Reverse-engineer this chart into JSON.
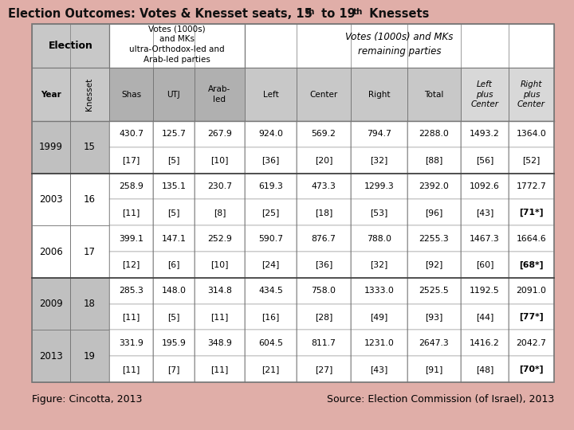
{
  "title_plain": "Election Outcomes: Votes & Knesset seats, 15th to 19th Knessets",
  "bg_color": "#e0aea8",
  "footer_left": "Figure: Cincotta, 2013",
  "footer_right": "Source: Election Commission (of Israel), 2013",
  "rows": [
    {
      "year": "1999",
      "knesset": "15",
      "shas_v": "430.7",
      "shas_mk": "[17]",
      "utj_v": "125.7",
      "utj_mk": "[5]",
      "arab_v": "267.9",
      "arab_mk": "[10]",
      "left_v": "924.0",
      "left_mk": "[36]",
      "center_v": "569.2",
      "center_mk": "[20]",
      "right_v": "794.7",
      "right_mk": "[32]",
      "total_v": "2288.0",
      "total_mk": "[88]",
      "lpc_v": "1493.2",
      "lpc_mk": "[56]",
      "rpc_v": "1364.0",
      "rpc_mk": "[52]",
      "group": 0
    },
    {
      "year": "2003",
      "knesset": "16",
      "shas_v": "258.9",
      "shas_mk": "[11]",
      "utj_v": "135.1",
      "utj_mk": "[5]",
      "arab_v": "230.7",
      "arab_mk": "[8]",
      "left_v": "619.3",
      "left_mk": "[25]",
      "center_v": "473.3",
      "center_mk": "[18]",
      "right_v": "1299.3",
      "right_mk": "[53]",
      "total_v": "2392.0",
      "total_mk": "[96]",
      "lpc_v": "1092.6",
      "lpc_mk": "[43]",
      "rpc_v": "1772.7",
      "rpc_mk": "[71*]",
      "group": 1
    },
    {
      "year": "2006",
      "knesset": "17",
      "shas_v": "399.1",
      "shas_mk": "[12]",
      "utj_v": "147.1",
      "utj_mk": "[6]",
      "arab_v": "252.9",
      "arab_mk": "[10]",
      "left_v": "590.7",
      "left_mk": "[24]",
      "center_v": "876.7",
      "center_mk": "[36]",
      "right_v": "788.0",
      "right_mk": "[32]",
      "total_v": "2255.3",
      "total_mk": "[92]",
      "lpc_v": "1467.3",
      "lpc_mk": "[60]",
      "rpc_v": "1664.6",
      "rpc_mk": "[68*]",
      "group": 1
    },
    {
      "year": "2009",
      "knesset": "18",
      "shas_v": "285.3",
      "shas_mk": "[11]",
      "utj_v": "148.0",
      "utj_mk": "[5]",
      "arab_v": "314.8",
      "arab_mk": "[11]",
      "left_v": "434.5",
      "left_mk": "[16]",
      "center_v": "758.0",
      "center_mk": "[28]",
      "right_v": "1333.0",
      "right_mk": "[49]",
      "total_v": "2525.5",
      "total_mk": "[93]",
      "lpc_v": "1192.5",
      "lpc_mk": "[44]",
      "rpc_v": "2091.0",
      "rpc_mk": "[77*]",
      "group": 2
    },
    {
      "year": "2013",
      "knesset": "19",
      "shas_v": "331.9",
      "shas_mk": "[11]",
      "utj_v": "195.9",
      "utj_mk": "[7]",
      "arab_v": "348.9",
      "arab_mk": "[11]",
      "left_v": "604.5",
      "left_mk": "[21]",
      "center_v": "811.7",
      "center_mk": "[27]",
      "right_v": "1231.0",
      "right_mk": "[43]",
      "total_v": "2647.3",
      "total_mk": "[91]",
      "lpc_v": "1416.2",
      "lpc_mk": "[48]",
      "rpc_v": "2042.7",
      "rpc_mk": "[70*]",
      "group": 2
    }
  ]
}
